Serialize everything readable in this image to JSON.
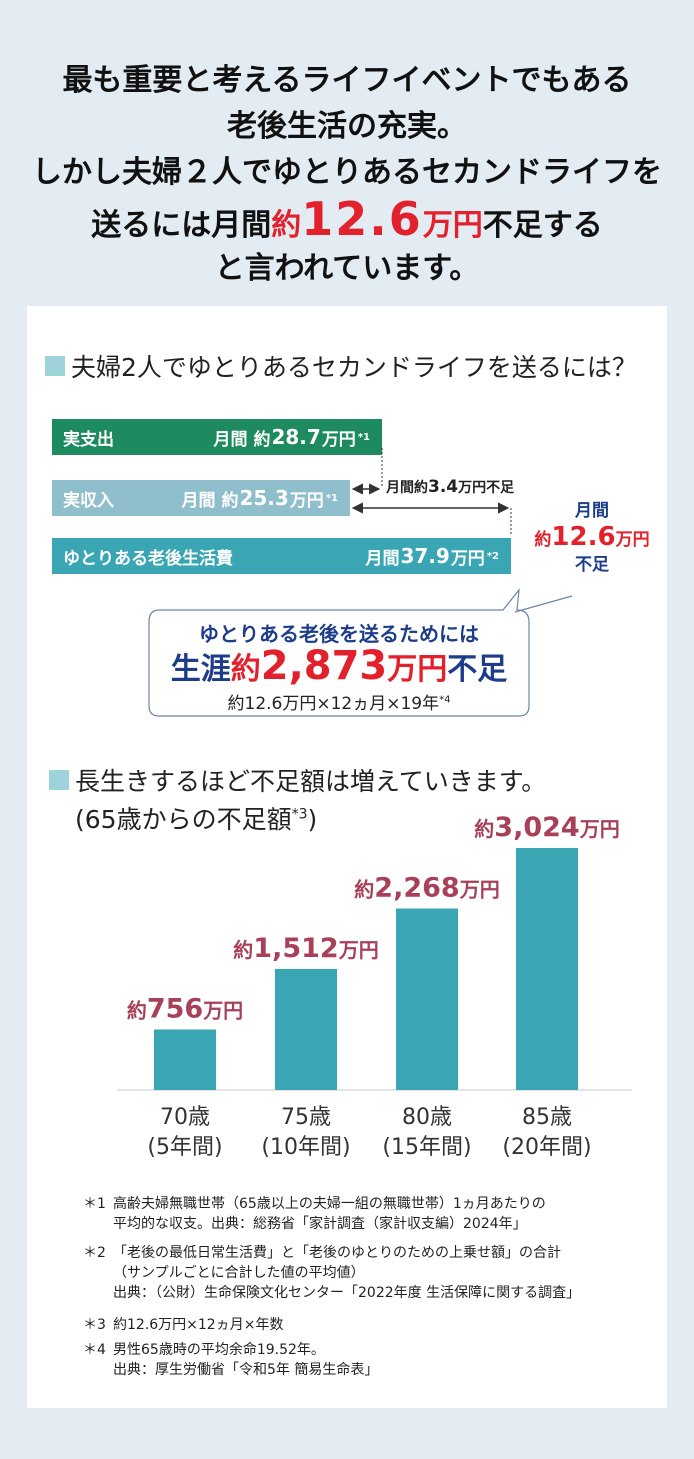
{
  "headline": {
    "line1": "最も重要と考えるライフイベントでもある",
    "line2": "老後生活の充実。",
    "line3": "しかし夫婦２人でゆとりあるセカンドライフを",
    "line4_pre": "送るには月間",
    "line4_yaku": "約",
    "line4_num": "12.6",
    "line4_unit": "万円",
    "line4_post": "不足する",
    "line5": "と言われています。"
  },
  "section1": {
    "title": "夫婦2人でゆとりあるセカンドライフを送るには？",
    "bars": [
      {
        "label": "実支出",
        "prefix": "月間 約",
        "num": "28.7",
        "unit": "万円",
        "note": "*1",
        "value": 28.7,
        "color": "#1e8a60"
      },
      {
        "label": "実収入",
        "prefix": "月間 約",
        "num": "25.3",
        "unit": "万円",
        "note": "*1",
        "value": 25.3,
        "color": "#8fbfcc"
      },
      {
        "label": "ゆとりある老後生活費",
        "prefix": "月間 ",
        "num": "37.9",
        "unit": "万円",
        "note": "*2",
        "value": 37.9,
        "color": "#3aa5b3"
      }
    ],
    "diff_label_pre": "月間約",
    "diff_label_num": "3.4",
    "diff_label_post": "万円不足",
    "side_note": {
      "l1": "月間",
      "yaku": "約",
      "num": "12.6",
      "unit": "万円",
      "l3": "不足"
    },
    "bubble": {
      "l1": "ゆとりある老後を送るためには",
      "l2_pre": "生涯",
      "l2_yaku": "約",
      "l2_num": "2,873",
      "l2_unit": "万円",
      "l2_post": "不足",
      "l3": "約12.6万円×12ヵ月×19年",
      "l3_note": "*4"
    }
  },
  "section2": {
    "title": "長生きするほど不足額は増えていきます。",
    "subtitle": "(65歳からの不足額",
    "subtitle_note": "*3",
    "subtitle_end": ")"
  },
  "chart_data": {
    "type": "bar",
    "categories": [
      "70歳",
      "75歳",
      "80歳",
      "85歳"
    ],
    "category_sub": [
      "(5年間)",
      "(10年間)",
      "(15年間)",
      "(20年間)"
    ],
    "values": [
      756,
      1512,
      2268,
      3024
    ],
    "data_labels": [
      {
        "pre": "約",
        "num": "756",
        "unit": "万円"
      },
      {
        "pre": "約",
        "num": "1,512",
        "unit": "万円"
      },
      {
        "pre": "約",
        "num": "2,268",
        "unit": "万円"
      },
      {
        "pre": "約",
        "num": "3,024",
        "unit": "万円"
      }
    ],
    "ylim": [
      0,
      3024
    ],
    "bar_color": "#3aa5b3",
    "label_color": "#a8405a"
  },
  "footnotes": [
    {
      "mark": "＊1",
      "lines": [
        "高齢夫婦無職世帯（65歳以上の夫婦一組の無職世帯）1ヵ月あたりの",
        "平均的な収支。出典：総務省「家計調査（家計収支編）2024年」"
      ]
    },
    {
      "mark": "＊2",
      "lines": [
        "「老後の最低日常生活費」と「老後のゆとりのための上乗せ額」の合計",
        "（サンプルごとに合計した値の平均値）",
        "出典：（公財）生命保険文化センター「2022年度 生活保障に関する調査」"
      ]
    },
    {
      "mark": "＊3",
      "lines": [
        "約12.6万円×12ヵ月×年数"
      ]
    },
    {
      "mark": "＊4",
      "lines": [
        "男性65歳時の平均余命19.52年。",
        "出典：厚生労働省「令和5年 簡易生命表」"
      ]
    }
  ]
}
